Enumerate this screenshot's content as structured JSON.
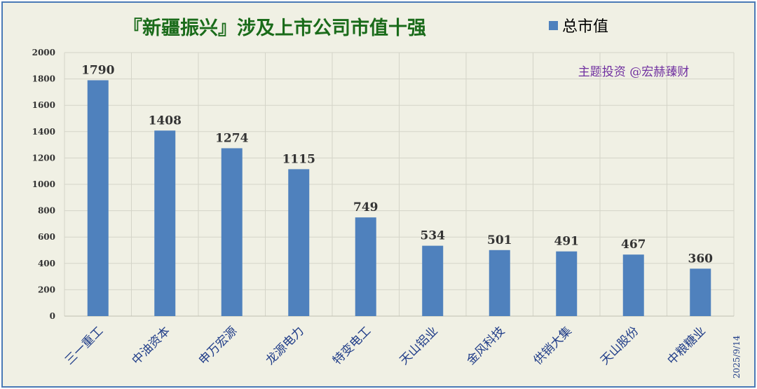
{
  "chart_data": {
    "type": "bar",
    "title": "『新疆振兴』涉及上市公司市值十强",
    "categories": [
      "三一重工",
      "中油资本",
      "申万宏源",
      "龙源电力",
      "特变电工",
      "天山铝业",
      "金风科技",
      "供销大集",
      "天山股份",
      "中粮糖业"
    ],
    "series": [
      {
        "name": "总市值",
        "values": [
          1790,
          1408,
          1274,
          1115,
          749,
          534,
          501,
          491,
          467,
          360
        ],
        "color": "#4f81bd"
      }
    ],
    "ylim": [
      0,
      2000
    ],
    "yticks": [
      0,
      200,
      400,
      600,
      800,
      1000,
      1200,
      1400,
      1600,
      1800,
      2000
    ],
    "grid": true,
    "legend_position": "top-right",
    "xlabel": "",
    "ylabel": ""
  },
  "annotations": {
    "watermark": "主题投资 @宏赫臻财",
    "date": "2025/9/14"
  },
  "colors": {
    "title": "#1a6b1a",
    "bar": "#4f81bd",
    "watermark": "#7030a0",
    "category": "#1f3c88",
    "border": "#4a7ab5"
  }
}
